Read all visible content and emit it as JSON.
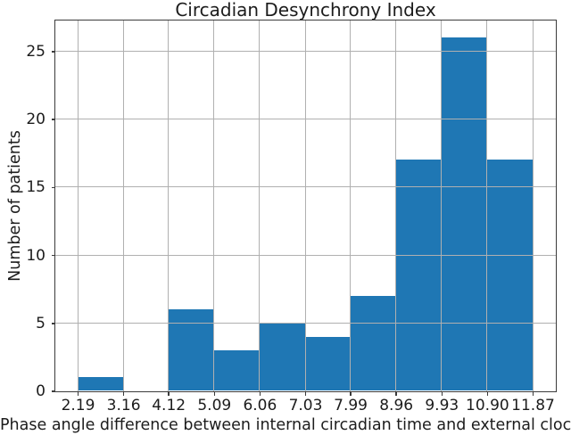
{
  "chart_data": {
    "type": "bar",
    "subtype": "histogram",
    "title": "Circadian Desynchrony Index",
    "xlabel": "Phase angle difference between internal circadian time and external clock time (h",
    "ylabel": "Number of patients",
    "bin_edges": [
      2.19,
      3.16,
      4.12,
      5.09,
      6.06,
      7.03,
      7.99,
      8.96,
      9.93,
      10.9,
      11.87
    ],
    "counts": [
      1,
      0,
      6,
      3,
      5,
      4,
      7,
      17,
      26,
      17
    ],
    "xtick_labels": [
      "2.19",
      "3.16",
      "4.12",
      "5.09",
      "6.06",
      "7.03",
      "7.99",
      "8.96",
      "9.93",
      "10.90",
      "11.87"
    ],
    "ytick_labels": [
      "0",
      "5",
      "10",
      "15",
      "20",
      "25"
    ],
    "yticks": [
      0,
      5,
      10,
      15,
      20,
      25
    ],
    "xlim": [
      1.706,
      12.354
    ],
    "ylim": [
      0,
      27.3
    ],
    "grid": true,
    "grid_above_bars": true,
    "legend": "none",
    "bar_color": "#1f77b4",
    "grid_color": "#b0b0b0",
    "spine_color": "#3b3b3b",
    "text_color": "#1c1c1c"
  }
}
